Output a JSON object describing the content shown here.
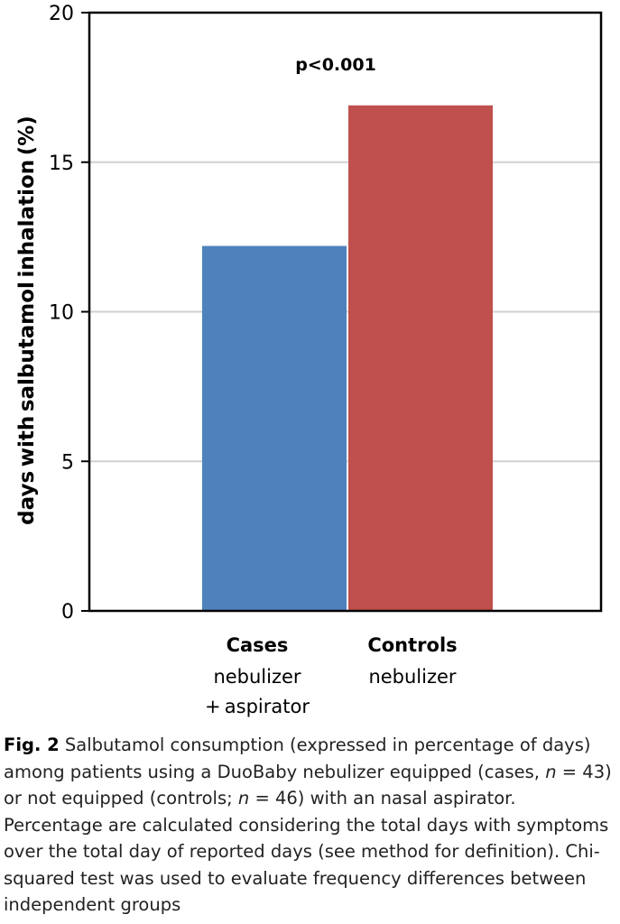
{
  "chart_data": {
    "type": "bar",
    "title": "",
    "xlabel": "",
    "ylabel": "days with salbutamol inhalation (%)",
    "ylim": [
      0,
      20
    ],
    "yticks": [
      "0",
      "5",
      "10",
      "15",
      "20"
    ],
    "grid": true,
    "annotation": "p<0.001",
    "categories": [
      "Cases nebulizer +aspirator",
      "Controls nebulizer"
    ],
    "category_labels": [
      {
        "title": "Cases",
        "lines": [
          "nebulizer",
          "+ aspirator"
        ]
      },
      {
        "title": "Controls",
        "lines": [
          "nebulizer"
        ]
      }
    ],
    "values": [
      12.2,
      16.9
    ],
    "colors": [
      "#4f81bd",
      "#c0504d"
    ]
  },
  "caption": {
    "label": "Fig. 2",
    "part1": " Salbutamol consumption (expressed in percentage of days) among patients using a DuoBaby nebulizer equipped (cases, ",
    "n_symbol_1": "n",
    "part2": " = 43) or not equipped (controls; ",
    "n_symbol_2": "n",
    "part3": " = 46) with an nasal aspirator. Percentage are calculated considering the total days with symptoms over the total day of reported days (see method for definition). Chi-squared test was used to evaluate frequency differences between independent groups"
  }
}
